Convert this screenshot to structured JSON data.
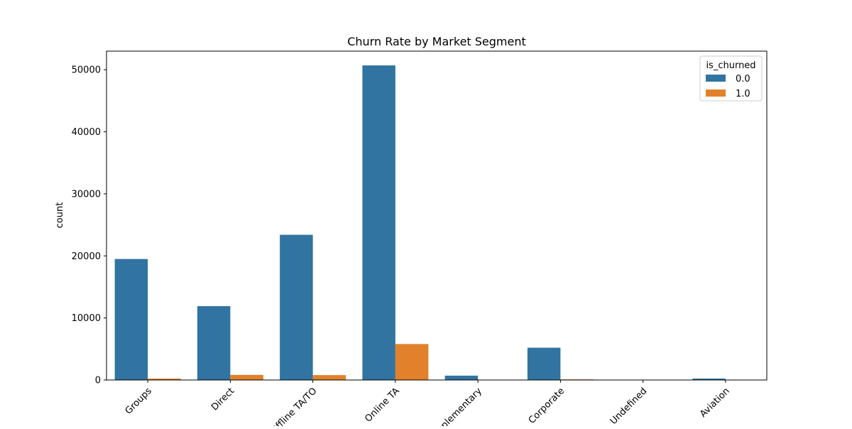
{
  "chart_data": {
    "type": "bar",
    "title": "Churn Rate by Market Segment",
    "xlabel": "",
    "ylabel": "count",
    "categories": [
      "Groups",
      "Direct",
      "Offline TA/TO",
      "Online TA",
      "Complementary",
      "Corporate",
      "Undefined",
      "Aviation"
    ],
    "series": [
      {
        "name": "0.0",
        "color": "#3274a1",
        "values": [
          19500,
          11900,
          23400,
          50700,
          700,
          5200,
          0,
          230
        ]
      },
      {
        "name": "1.0",
        "color": "#e1812c",
        "values": [
          230,
          820,
          790,
          5800,
          20,
          100,
          0,
          10
        ]
      }
    ],
    "ylim": [
      0,
      53000
    ],
    "yticks": [
      0,
      10000,
      20000,
      30000,
      40000,
      50000
    ],
    "legend": {
      "title": "is_churned",
      "placement": "top-right"
    },
    "grid": false
  }
}
